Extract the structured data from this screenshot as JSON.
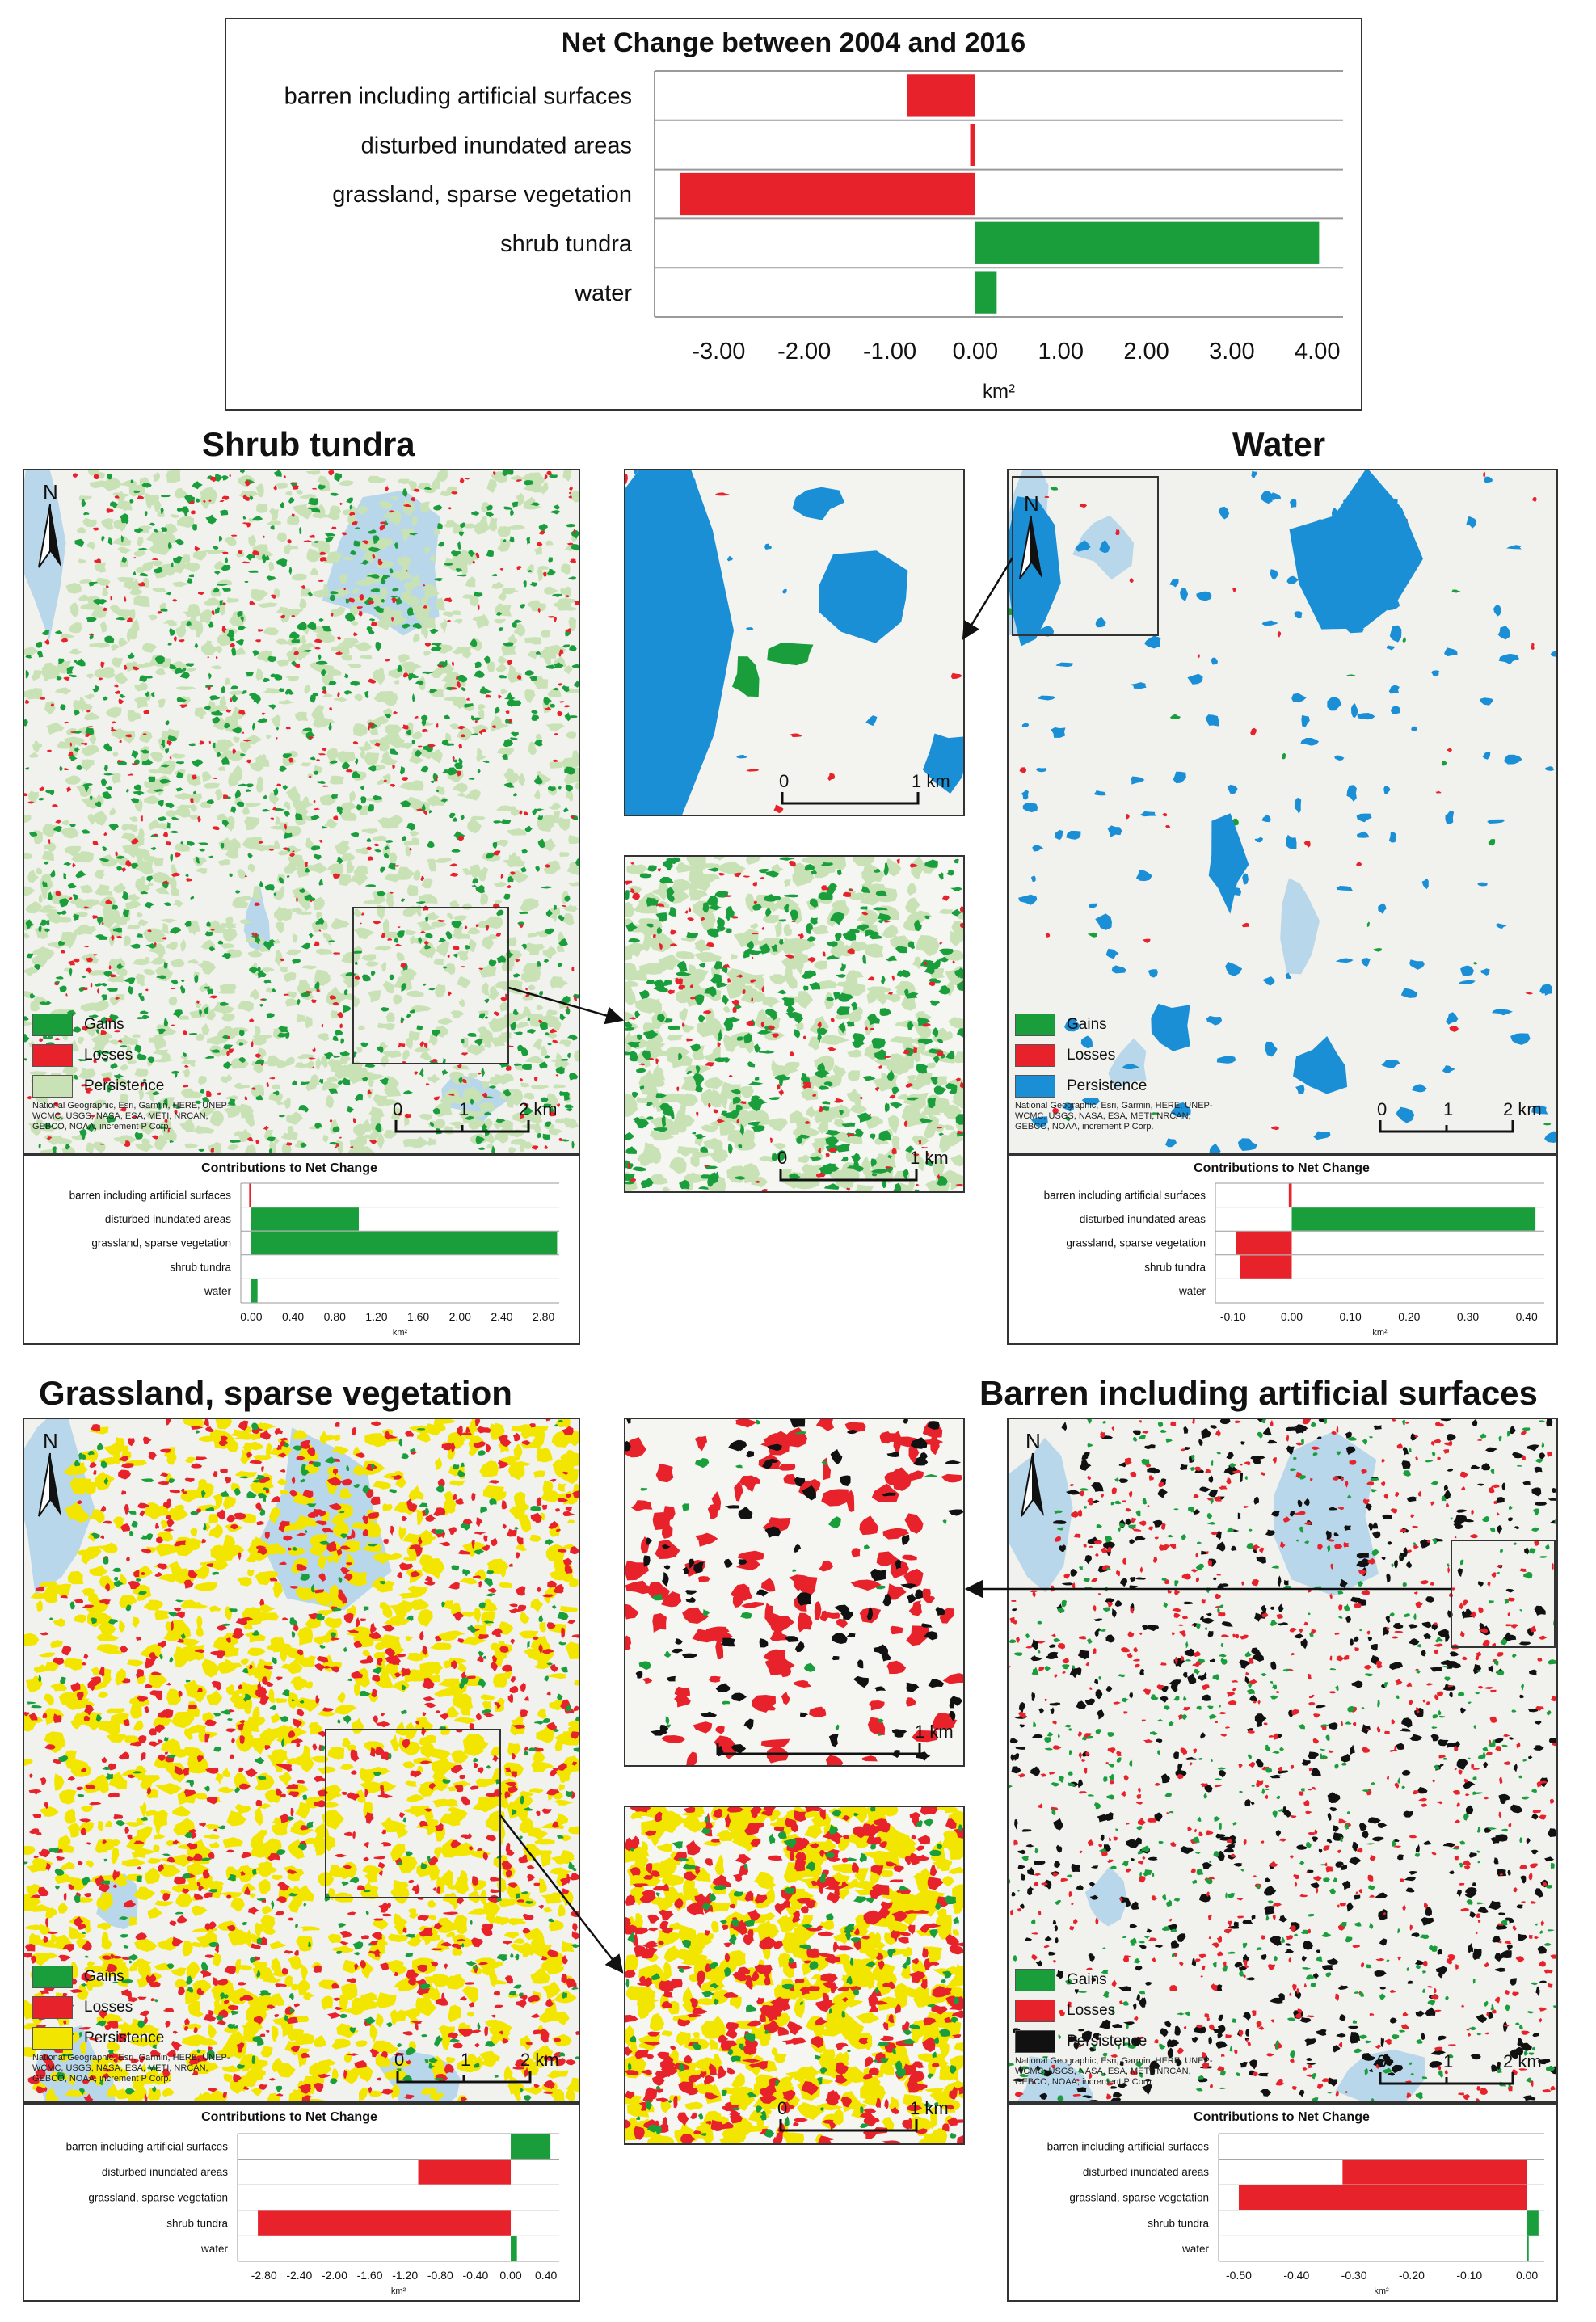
{
  "top_chart": {
    "title": "Net Change between 2004 and 2016",
    "xlabel": "km²",
    "categories": [
      "barren including artificial surfaces",
      "disturbed inundated areas",
      "grassland, sparse vegetation",
      "shrub tundra",
      "water"
    ],
    "values": [
      -0.8,
      -0.06,
      -3.45,
      4.02,
      0.25
    ],
    "ticks": [
      -3.0,
      -2.0,
      -1.0,
      0.0,
      1.0,
      2.0,
      3.0,
      4.0
    ],
    "tick_labels": [
      "-3.00",
      "-2.00",
      "-1.00",
      "0.00",
      "1.00",
      "2.00",
      "3.00",
      "4.00"
    ],
    "xlim": [
      -3.75,
      4.3
    ]
  },
  "panels": {
    "shrub": {
      "title": "Shrub tundra",
      "legend": [
        "Gains",
        "Losses",
        "Persistence"
      ],
      "scale": [
        "0",
        "1",
        "2 km"
      ]
    },
    "water": {
      "title": "Water",
      "legend": [
        "Gains",
        "Losses",
        "Persistence"
      ],
      "scale": [
        "0",
        "1",
        "2 km"
      ]
    },
    "grass": {
      "title": "Grassland, sparse vegetation",
      "legend": [
        "Gains",
        "Losses",
        "Persistence"
      ],
      "scale": [
        "0",
        "1",
        "2 km"
      ]
    },
    "barren": {
      "title": "Barren including artificial surfaces",
      "legend": [
        "Gains",
        "Losses",
        "Persistence"
      ],
      "scale": [
        "0",
        "1",
        "2 km"
      ]
    }
  },
  "attribution": "National Geographic, Esri, Garmin, HERE, UNEP-WCMC, USGS, NASA, ESA, METI, NRCAN, GEBCO, NOAA, increment P Corp.",
  "north": "N",
  "inset_scale": [
    "0",
    "1 km"
  ],
  "colors": {
    "gain": "#1a9e3c",
    "loss": "#e8222b",
    "water_persist": "#1a8fd6",
    "shrub_persist": "#c8e2b6",
    "grass_persist": "#f2e600",
    "barren_persist": "#111111",
    "lake": "#b9d7ea",
    "land": "#f1f1ee"
  },
  "chart_data": [
    {
      "type": "bar",
      "title": "Net Change between 2004 and 2016",
      "xlabel": "km²",
      "categories": [
        "barren including artificial surfaces",
        "disturbed inundated areas",
        "grassland, sparse vegetation",
        "shrub tundra",
        "water"
      ],
      "values": [
        -0.8,
        -0.06,
        -3.45,
        4.02,
        0.25
      ],
      "xlim": [
        -3.75,
        4.3
      ]
    },
    {
      "type": "bar",
      "title": "Contributions to Net Change",
      "xlabel": "km²",
      "categories": [
        "barren including artificial surfaces",
        "disturbed inundated areas",
        "grassland, sparse vegetation",
        "shrub tundra",
        "water"
      ],
      "values": [
        -0.02,
        1.03,
        2.93,
        0,
        0.06
      ],
      "tick_labels": [
        "0.00",
        "0.40",
        "0.80",
        "1.20",
        "1.60",
        "2.00",
        "2.40",
        "2.80"
      ],
      "xlim": [
        -0.1,
        2.95
      ]
    },
    {
      "type": "bar",
      "title": "Contributions to Net Change",
      "xlabel": "km²",
      "categories": [
        "barren including artificial surfaces",
        "disturbed inundated areas",
        "grassland, sparse vegetation",
        "shrub tundra",
        "water"
      ],
      "values": [
        -0.005,
        0.415,
        -0.095,
        -0.088,
        0
      ],
      "tick_labels": [
        "-0.10",
        "0.00",
        "0.10",
        "0.20",
        "0.30",
        "0.40"
      ],
      "xlim": [
        -0.13,
        0.43
      ]
    },
    {
      "type": "bar",
      "title": "Contributions to Net Change",
      "xlabel": "km²",
      "categories": [
        "barren including artificial surfaces",
        "disturbed inundated areas",
        "grassland, sparse vegetation",
        "shrub tundra",
        "water"
      ],
      "values": [
        0.45,
        -1.05,
        0,
        -2.87,
        0.07
      ],
      "tick_labels": [
        "-2.80",
        "-2.40",
        "-2.00",
        "-1.60",
        "-1.20",
        "-0.80",
        "-0.40",
        "0.00",
        "0.40"
      ],
      "xlim": [
        -3.1,
        0.55
      ]
    },
    {
      "type": "bar",
      "title": "Contributions to Net Change",
      "xlabel": "km²",
      "categories": [
        "barren including artificial surfaces",
        "disturbed inundated areas",
        "grassland, sparse vegetation",
        "shrub tundra",
        "water"
      ],
      "values": [
        0,
        -0.32,
        -0.5,
        0.02,
        0.003
      ],
      "tick_labels": [
        "-0.50",
        "-0.40",
        "-0.30",
        "-0.20",
        "-0.10",
        "0.00"
      ],
      "xlim": [
        -0.535,
        0.03
      ]
    }
  ]
}
